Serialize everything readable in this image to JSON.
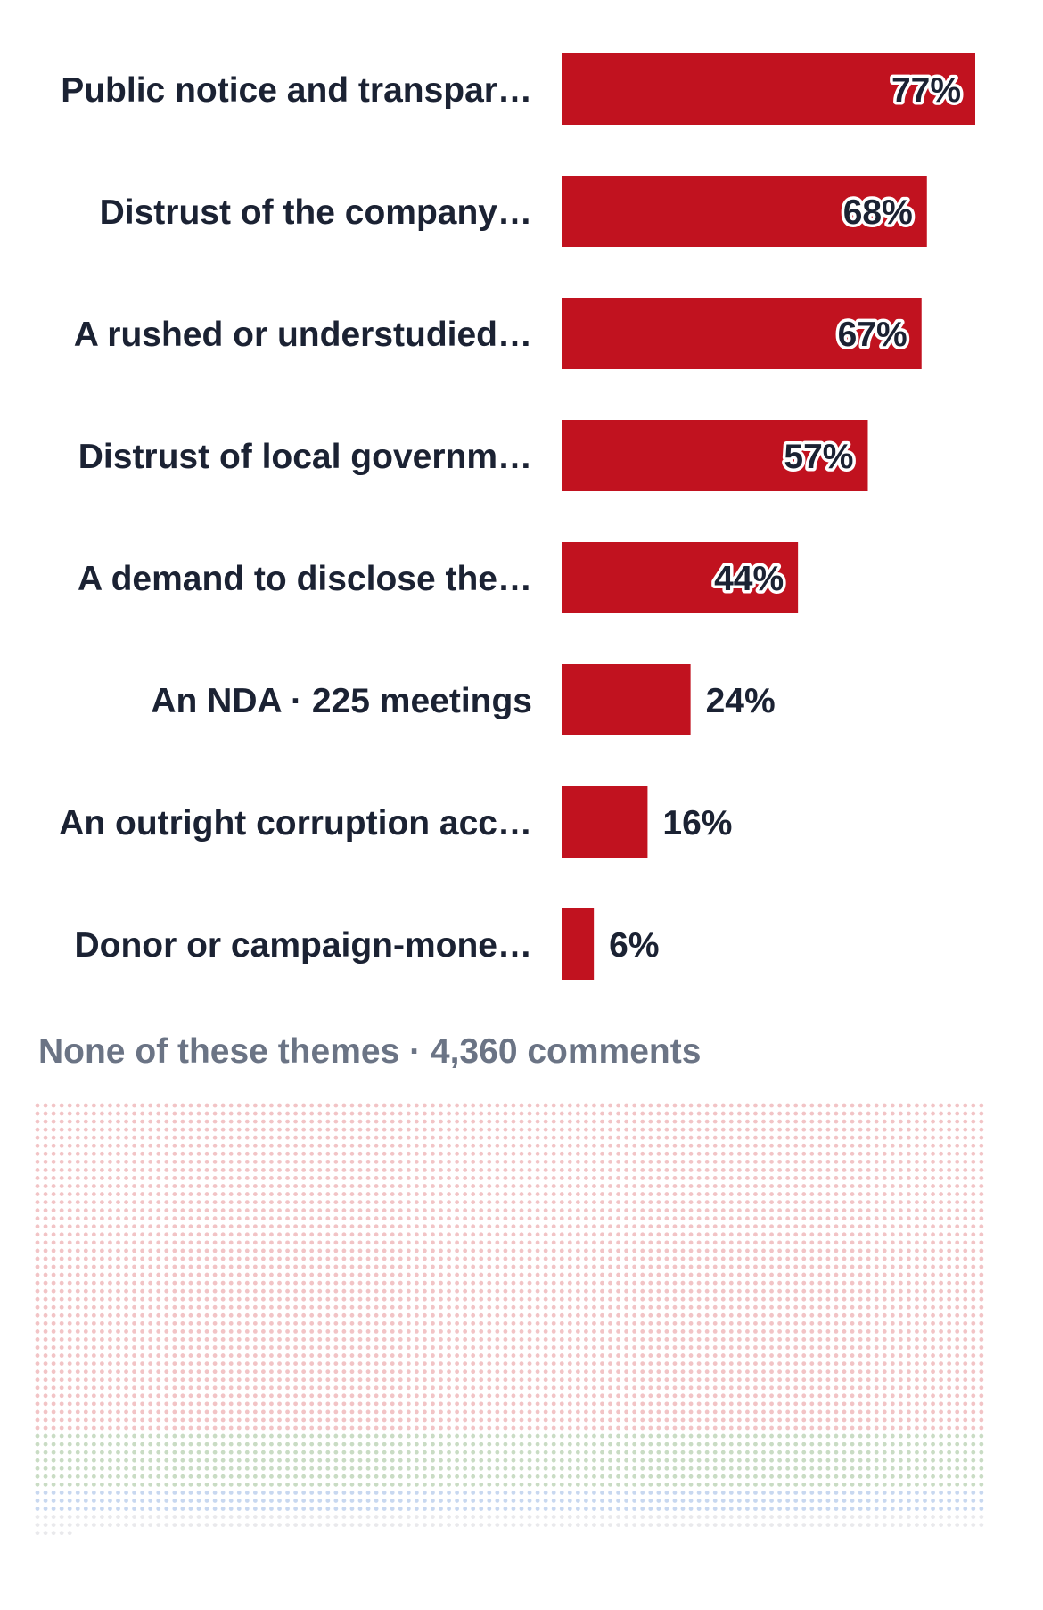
{
  "chart_data": {
    "type": "bar",
    "orientation": "horizontal",
    "categories": [
      "Public notice and transpar…",
      "Distrust of the company…",
      "A rushed or understudied…",
      "Distrust of local governm…",
      "A demand to disclose the…",
      "An NDA · 225 meetings",
      "An outright corruption acc…",
      "Donor or campaign-mone…"
    ],
    "values": [
      77,
      68,
      67,
      57,
      44,
      24,
      16,
      6
    ],
    "value_labels": [
      "77%",
      "68%",
      "67%",
      "57%",
      "44%",
      "24%",
      "16%",
      "6%"
    ],
    "bar_color": "#c1121f",
    "grid": false,
    "legend": "none"
  },
  "footer": {
    "none_label": "None of these themes · 4,360 comments"
  },
  "dot_grid": {
    "colors": [
      "#f2c4c6",
      "#c9dcc4",
      "#c8d8f0",
      "#e9e9ec"
    ]
  }
}
